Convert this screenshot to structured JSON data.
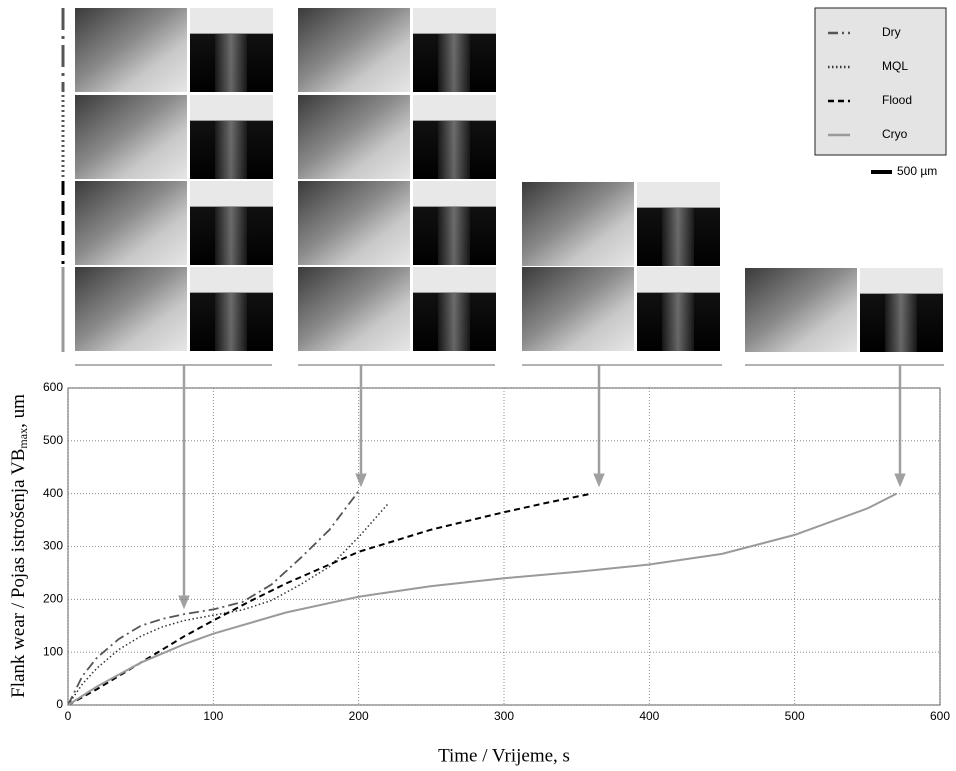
{
  "chart_data": {
    "type": "line",
    "xlabel": "Time / Vrijeme, s",
    "ylabel": "Flank wear / Pojas istrošenja VB",
    "ylabel_sub": "max",
    "ylabel_end": ", um",
    "scale_bar_label": "500 µm",
    "xlim": [
      0,
      600
    ],
    "ylim": [
      0,
      600
    ],
    "xticks": [
      0,
      100,
      200,
      300,
      400,
      500,
      600
    ],
    "yticks": [
      0,
      100,
      200,
      300,
      400,
      500,
      600
    ],
    "grid": true,
    "legend": "upper right",
    "series": [
      {
        "name": "Dry",
        "color": "#555555",
        "style": "dashdot",
        "x": [
          0,
          10,
          20,
          35,
          50,
          65,
          80,
          100,
          120,
          140,
          160,
          180,
          200
        ],
        "values": [
          0,
          55,
          90,
          125,
          150,
          163,
          172,
          181,
          195,
          228,
          278,
          332,
          405
        ]
      },
      {
        "name": "MQL",
        "color": "#333333",
        "style": "dotted",
        "x": [
          0,
          10,
          20,
          35,
          50,
          65,
          80,
          100,
          120,
          140,
          160,
          180,
          200,
          220
        ],
        "values": [
          0,
          40,
          70,
          105,
          130,
          148,
          160,
          170,
          180,
          198,
          228,
          262,
          318,
          380
        ]
      },
      {
        "name": "Flood",
        "color": "#000000",
        "style": "dashed",
        "x": [
          0,
          20,
          50,
          80,
          100,
          125,
          150,
          200,
          250,
          300,
          330,
          360
        ],
        "values": [
          0,
          30,
          80,
          130,
          160,
          196,
          230,
          290,
          332,
          365,
          383,
          400
        ]
      },
      {
        "name": "Cryo",
        "color": "#9a9a9a",
        "style": "solid",
        "x": [
          0,
          20,
          50,
          80,
          100,
          150,
          200,
          250,
          300,
          350,
          400,
          450,
          500,
          550,
          570
        ],
        "values": [
          0,
          35,
          80,
          115,
          135,
          175,
          205,
          225,
          240,
          252,
          266,
          286,
          322,
          372,
          400
        ]
      }
    ]
  }
}
